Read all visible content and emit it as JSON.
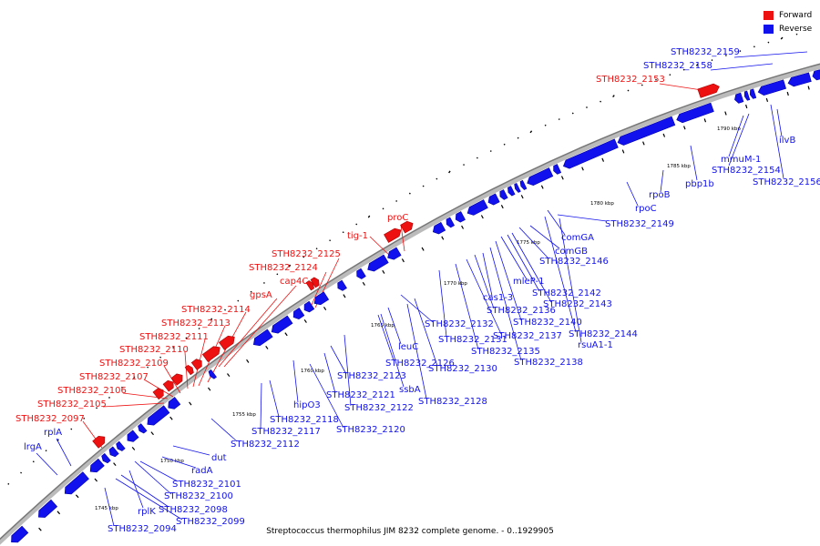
{
  "legend": {
    "forward_label": "Forward",
    "reverse_label": "Reverse",
    "forward_color": "#ee1111",
    "reverse_color": "#1111ee"
  },
  "caption": "Streptococcus thermophilus JIM 8232 complete genome. - 0..1929905",
  "colors": {
    "forward": "#ee1111",
    "reverse": "#1111ee",
    "backbone": "#999999",
    "ticks": "#000000"
  },
  "scale": {
    "unit": "kbp",
    "labels": [
      "1745 kbp",
      "1750 kbp",
      "1755 kbp",
      "1760 kbp",
      "1765 kbp",
      "1770 kbp",
      "1775 kbp",
      "1780 kbp",
      "1785 kbp",
      "1790 kbp"
    ]
  },
  "forward_labels": [
    "STH8232_2153",
    "proC",
    "tig-1",
    "STH8232_2125",
    "STH8232_2124",
    "cap4C",
    "gpsA",
    "STH8232_2114",
    "STH8232_2113",
    "STH8232_2111",
    "STH8232_2110",
    "STH8232_2109",
    "STH8232_2107",
    "STH8232_2106",
    "STH8232_2105",
    "STH8232_2097"
  ],
  "reverse_labels": [
    "STH8232_2159",
    "STH8232_2158",
    "ilvB",
    "mmuM-1",
    "STH8232_2154",
    "STH8232_2156",
    "pbp1b",
    "rpoB",
    "rpoC",
    "STH8232_2149",
    "comGA",
    "comGB",
    "STH8232_2146",
    "mleP-1",
    "STH8232_2142",
    "STH8232_2143",
    "cas1-3",
    "STH8232_2136",
    "STH8232_2140",
    "STH8232_2144",
    "STH8232_2137",
    "rsuA1-1",
    "STH8232_2132",
    "STH8232_2131",
    "STH8232_2135",
    "STH8232_2138",
    "leuC",
    "STH8232_2126",
    "STH8232_2130",
    "STH8232_2123",
    "ssbA",
    "STH8232_2128",
    "STH8232_2121",
    "STH8232_2122",
    "hipO3",
    "STH8232_2118",
    "STH8232_2117",
    "STH8232_2120",
    "STH8232_2112",
    "dut",
    "radA",
    "STH8232_2101",
    "STH8232_2100",
    "rplK",
    "STH8232_2098",
    "STH8232_2099",
    "STH8232_2094",
    "rplA",
    "lrgA"
  ]
}
